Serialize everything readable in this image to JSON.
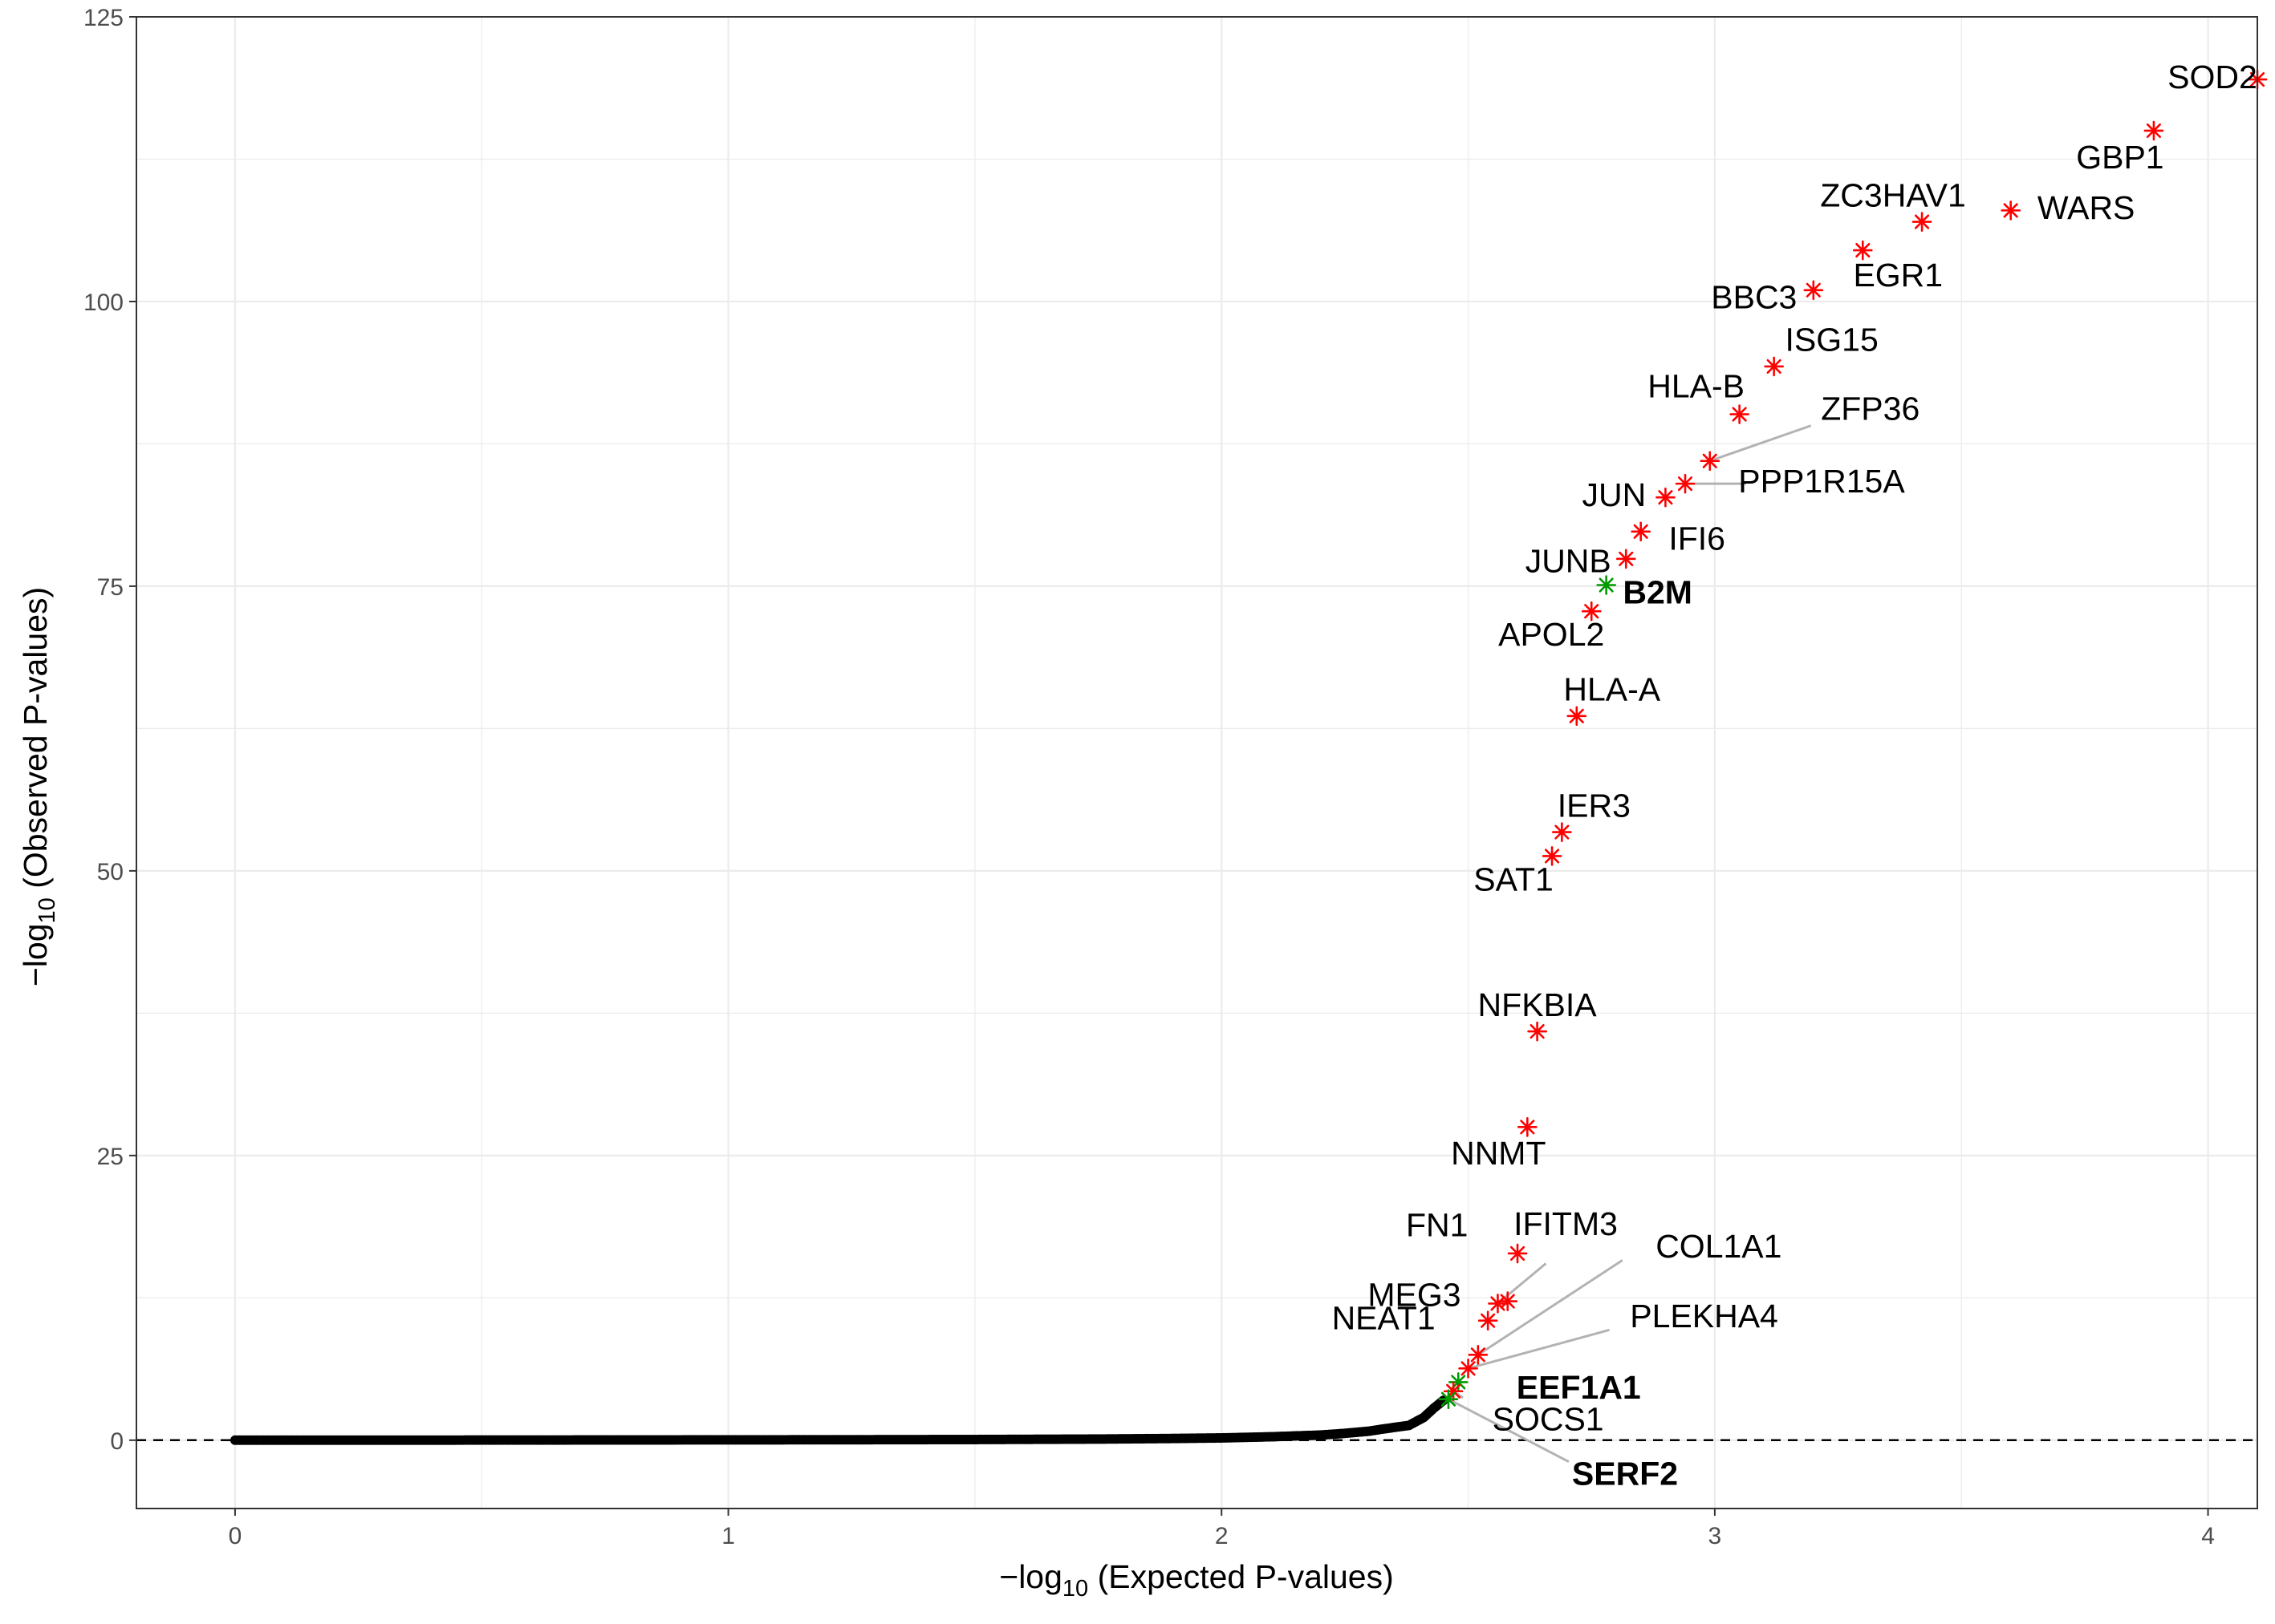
{
  "chart_data": {
    "type": "scatter",
    "xlabel": "-log10 (Expected P-values)",
    "ylabel": "-log10 (Observed P-values)",
    "xlim": [
      -0.2,
      4.1
    ],
    "ylim": [
      -6,
      125
    ],
    "x_ticks": [
      0,
      1,
      2,
      3,
      4
    ],
    "y_ticks": [
      0,
      25,
      50,
      75,
      100,
      125
    ],
    "grid": true,
    "reference_line": {
      "y": 0,
      "style": "dashed"
    },
    "colors": {
      "background_points": "#000000",
      "highlight_red": "#ff0000",
      "highlight_green": "#009900",
      "label_line": "#b3b3b3",
      "grid": "#ebebeb",
      "panel_border": "#333333"
    },
    "background_points": [
      [
        0.0,
        0.0
      ],
      [
        0.25,
        0.0
      ],
      [
        0.5,
        0.01
      ],
      [
        0.75,
        0.02
      ],
      [
        1.0,
        0.03
      ],
      [
        1.25,
        0.04
      ],
      [
        1.5,
        0.06
      ],
      [
        1.75,
        0.1
      ],
      [
        1.9,
        0.15
      ],
      [
        2.0,
        0.2
      ],
      [
        2.1,
        0.3
      ],
      [
        2.2,
        0.45
      ],
      [
        2.25,
        0.6
      ],
      [
        2.3,
        0.8
      ],
      [
        2.33,
        1.0
      ],
      [
        2.38,
        1.3
      ],
      [
        2.41,
        2.0
      ],
      [
        2.43,
        2.8
      ],
      [
        2.45,
        3.5
      ]
    ],
    "highlighted_points": [
      {
        "label": "SOD2",
        "x": 4.1,
        "y": 119.5,
        "color": "red",
        "bold": false
      },
      {
        "label": "GBP1",
        "x": 3.89,
        "y": 115.0,
        "color": "red",
        "bold": false
      },
      {
        "label": "WARS",
        "x": 3.6,
        "y": 108.0,
        "color": "red",
        "bold": false
      },
      {
        "label": "ZC3HAV1",
        "x": 3.42,
        "y": 107.0,
        "color": "red",
        "bold": false
      },
      {
        "label": "EGR1",
        "x": 3.3,
        "y": 104.5,
        "color": "red",
        "bold": false
      },
      {
        "label": "BBC3",
        "x": 3.2,
        "y": 101.0,
        "color": "red",
        "bold": false
      },
      {
        "label": "ISG15",
        "x": 3.12,
        "y": 94.3,
        "color": "red",
        "bold": false
      },
      {
        "label": "HLA-B",
        "x": 3.05,
        "y": 90.1,
        "color": "red",
        "bold": false
      },
      {
        "label": "ZFP36",
        "x": 2.99,
        "y": 86.0,
        "color": "red",
        "bold": false
      },
      {
        "label": "PPP1R15A",
        "x": 2.94,
        "y": 84.0,
        "color": "red",
        "bold": false
      },
      {
        "label": "JUN",
        "x": 2.9,
        "y": 82.8,
        "color": "red",
        "bold": false
      },
      {
        "label": "IFI6",
        "x": 2.85,
        "y": 79.8,
        "color": "red",
        "bold": false
      },
      {
        "label": "JUNB",
        "x": 2.82,
        "y": 77.4,
        "color": "red",
        "bold": false
      },
      {
        "label": "B2M",
        "x": 2.78,
        "y": 75.1,
        "color": "green",
        "bold": true
      },
      {
        "label": "APOL2",
        "x": 2.75,
        "y": 72.8,
        "color": "red",
        "bold": false
      },
      {
        "label": "HLA-A",
        "x": 2.72,
        "y": 63.6,
        "color": "red",
        "bold": false
      },
      {
        "label": "IER3",
        "x": 2.69,
        "y": 53.4,
        "color": "red",
        "bold": false
      },
      {
        "label": "SAT1",
        "x": 2.67,
        "y": 51.3,
        "color": "red",
        "bold": false
      },
      {
        "label": "NFKBIA",
        "x": 2.64,
        "y": 35.9,
        "color": "red",
        "bold": false
      },
      {
        "label": "NNMT",
        "x": 2.62,
        "y": 27.5,
        "color": "red",
        "bold": false
      },
      {
        "label": "IFITM3",
        "x": 2.6,
        "y": 16.4,
        "color": "red",
        "bold": false
      },
      {
        "label": "FN1",
        "x": 2.58,
        "y": 12.2,
        "color": "red",
        "bold": false
      },
      {
        "label": "MEG3",
        "x": 2.56,
        "y": 12.0,
        "color": "red",
        "bold": false
      },
      {
        "label": "NEAT1",
        "x": 2.54,
        "y": 10.5,
        "color": "red",
        "bold": false
      },
      {
        "label": "COL1A1",
        "x": 2.52,
        "y": 7.5,
        "color": "red",
        "bold": false
      },
      {
        "label": "PLEKHA4",
        "x": 2.5,
        "y": 6.3,
        "color": "red",
        "bold": false
      },
      {
        "label": "EEF1A1",
        "x": 2.48,
        "y": 5.1,
        "color": "green",
        "bold": true
      },
      {
        "label": "SOCS1",
        "x": 2.47,
        "y": 4.3,
        "color": "red",
        "bold": false
      },
      {
        "label": "SERF2",
        "x": 2.46,
        "y": 3.6,
        "color": "green",
        "bold": true
      }
    ]
  }
}
